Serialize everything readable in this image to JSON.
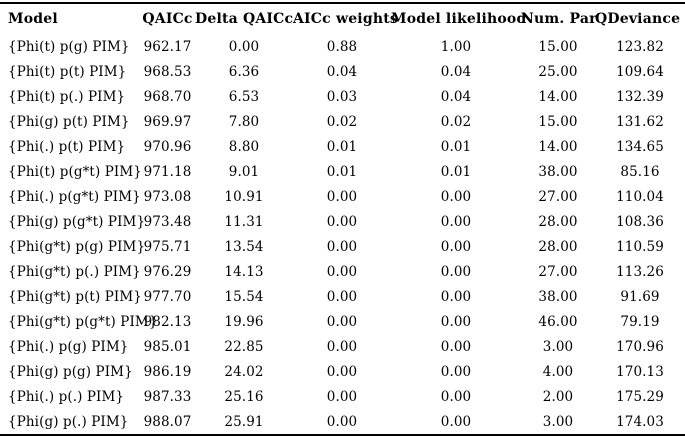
{
  "colors": {
    "background": "#ffffff",
    "text": "#000000",
    "rule": "#000000"
  },
  "chart_data": {
    "type": "table",
    "title": "",
    "columns": [
      "Model",
      "QAICc",
      "Delta QAICc",
      "AICc weights",
      "Model likelihood",
      "Num. Par",
      "QDeviance"
    ],
    "rows": [
      [
        "{Phi(t) p(g) PIM}",
        "962.17",
        "0.00",
        "0.88",
        "1.00",
        "15.00",
        "123.82"
      ],
      [
        "{Phi(t) p(t) PIM}",
        "968.53",
        "6.36",
        "0.04",
        "0.04",
        "25.00",
        "109.64"
      ],
      [
        "{Phi(t) p(.) PIM}",
        "968.70",
        "6.53",
        "0.03",
        "0.04",
        "14.00",
        "132.39"
      ],
      [
        "{Phi(g) p(t) PIM}",
        "969.97",
        "7.80",
        "0.02",
        "0.02",
        "15.00",
        "131.62"
      ],
      [
        "{Phi(.) p(t) PIM}",
        "970.96",
        "8.80",
        "0.01",
        "0.01",
        "14.00",
        "134.65"
      ],
      [
        "{Phi(t) p(g*t) PIM}",
        "971.18",
        "9.01",
        "0.01",
        "0.01",
        "38.00",
        "85.16"
      ],
      [
        "{Phi(.) p(g*t) PIM}",
        "973.08",
        "10.91",
        "0.00",
        "0.00",
        "27.00",
        "110.04"
      ],
      [
        "{Phi(g) p(g*t) PIM}",
        "973.48",
        "11.31",
        "0.00",
        "0.00",
        "28.00",
        "108.36"
      ],
      [
        "{Phi(g*t) p(g) PIM}",
        "975.71",
        "13.54",
        "0.00",
        "0.00",
        "28.00",
        "110.59"
      ],
      [
        "{Phi(g*t) p(.) PIM}",
        "976.29",
        "14.13",
        "0.00",
        "0.00",
        "27.00",
        "113.26"
      ],
      [
        "{Phi(g*t) p(t) PIM}",
        "977.70",
        "15.54",
        "0.00",
        "0.00",
        "38.00",
        "91.69"
      ],
      [
        "{Phi(g*t) p(g*t) PIM}",
        "982.13",
        "19.96",
        "0.00",
        "0.00",
        "46.00",
        "79.19"
      ],
      [
        "{Phi(.) p(g) PIM}",
        "985.01",
        "22.85",
        "0.00",
        "0.00",
        "3.00",
        "170.96"
      ],
      [
        "{Phi(g) p(g) PIM}",
        "986.19",
        "24.02",
        "0.00",
        "0.00",
        "4.00",
        "170.13"
      ],
      [
        "{Phi(.) p(.) PIM}",
        "987.33",
        "25.16",
        "0.00",
        "0.00",
        "2.00",
        "175.29"
      ],
      [
        "{Phi(g) p(.) PIM}",
        "988.07",
        "25.91",
        "0.00",
        "0.00",
        "3.00",
        "174.03"
      ]
    ]
  }
}
